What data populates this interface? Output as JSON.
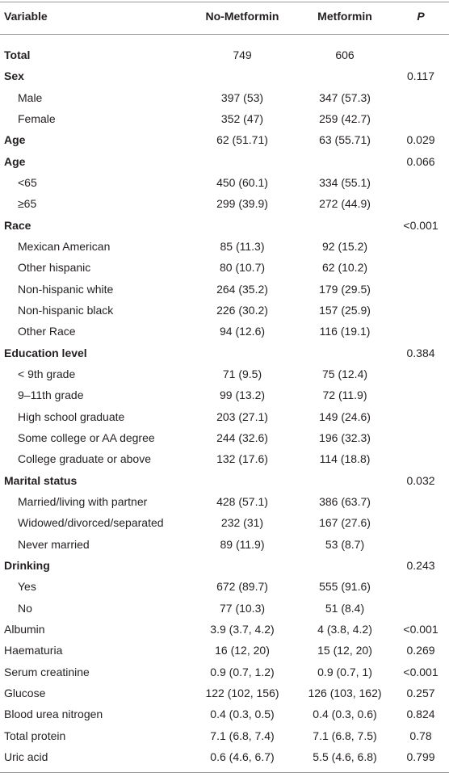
{
  "table": {
    "header": {
      "variable": "Variable",
      "no_metformin": "No-Metformin",
      "metformin": "Metformin",
      "p": "P"
    },
    "rows": [
      {
        "variable": "Total",
        "group": true,
        "no_metformin": "749",
        "metformin": "606"
      },
      {
        "variable": "Sex",
        "group": true,
        "p": "0.117"
      },
      {
        "variable": "Male",
        "sub": true,
        "no_metformin": "397 (53)",
        "metformin": "347 (57.3)"
      },
      {
        "variable": "Female",
        "sub": true,
        "no_metformin": "352 (47)",
        "metformin": "259 (42.7)"
      },
      {
        "variable": "Age",
        "group": true,
        "no_metformin": "62 (51.71)",
        "metformin": "63 (55.71)",
        "p": "0.029"
      },
      {
        "variable": "Age",
        "group": true,
        "p": "0.066"
      },
      {
        "variable": "<65",
        "sub": true,
        "no_metformin": "450 (60.1)",
        "metformin": "334 (55.1)"
      },
      {
        "variable": "≥65",
        "sub": true,
        "no_metformin": "299 (39.9)",
        "metformin": "272 (44.9)"
      },
      {
        "variable": "Race",
        "group": true,
        "p": "<0.001"
      },
      {
        "variable": "Mexican American",
        "sub": true,
        "no_metformin": "85 (11.3)",
        "metformin": "92 (15.2)"
      },
      {
        "variable": "Other hispanic",
        "sub": true,
        "no_metformin": "80 (10.7)",
        "metformin": "62 (10.2)"
      },
      {
        "variable": "Non-hispanic white",
        "sub": true,
        "no_metformin": "264 (35.2)",
        "metformin": "179 (29.5)"
      },
      {
        "variable": "Non-hispanic black",
        "sub": true,
        "no_metformin": "226 (30.2)",
        "metformin": "157 (25.9)"
      },
      {
        "variable": "Other Race",
        "sub": true,
        "no_metformin": "94 (12.6)",
        "metformin": "116 (19.1)"
      },
      {
        "variable": "Education level",
        "group": true,
        "p": "0.384"
      },
      {
        "variable": "< 9th grade",
        "sub": true,
        "no_metformin": "71 (9.5)",
        "metformin": "75 (12.4)"
      },
      {
        "variable": "9–11th grade",
        "sub": true,
        "no_metformin": "99 (13.2)",
        "metformin": "72 (11.9)"
      },
      {
        "variable": "High school graduate",
        "sub": true,
        "no_metformin": "203 (27.1)",
        "metformin": "149 (24.6)"
      },
      {
        "variable": "Some college or AA degree",
        "sub": true,
        "no_metformin": "244 (32.6)",
        "metformin": "196 (32.3)"
      },
      {
        "variable": "College graduate or above",
        "sub": true,
        "no_metformin": "132 (17.6)",
        "metformin": "114 (18.8)"
      },
      {
        "variable": "Marital status",
        "group": true,
        "p": "0.032"
      },
      {
        "variable": "Married/living with partner",
        "sub": true,
        "no_metformin": "428 (57.1)",
        "metformin": "386 (63.7)"
      },
      {
        "variable": "Widowed/divorced/separated",
        "sub": true,
        "no_metformin": "232 (31)",
        "metformin": "167 (27.6)"
      },
      {
        "variable": "Never married",
        "sub": true,
        "no_metformin": "89 (11.9)",
        "metformin": "53 (8.7)"
      },
      {
        "variable": "Drinking",
        "group": true,
        "p": "0.243"
      },
      {
        "variable": "Yes",
        "sub": true,
        "no_metformin": "672 (89.7)",
        "metformin": "555 (91.6)"
      },
      {
        "variable": "No",
        "sub": true,
        "no_metformin": "77 (10.3)",
        "metformin": "51 (8.4)"
      },
      {
        "variable": "Albumin",
        "no_metformin": "3.9 (3.7, 4.2)",
        "metformin": "4 (3.8, 4.2)",
        "p": "<0.001"
      },
      {
        "variable": "Haematuria",
        "no_metformin": "16 (12, 20)",
        "metformin": "15 (12, 20)",
        "p": "0.269"
      },
      {
        "variable": "Serum creatinine",
        "no_metformin": "0.9 (0.7, 1.2)",
        "metformin": "0.9 (0.7, 1)",
        "p": "<0.001"
      },
      {
        "variable": "Glucose",
        "no_metformin": "122 (102, 156)",
        "metformin": "126 (103, 162)",
        "p": "0.257"
      },
      {
        "variable": "Blood urea nitrogen",
        "no_metformin": "0.4 (0.3, 0.5)",
        "metformin": "0.4 (0.3, 0.6)",
        "p": "0.824"
      },
      {
        "variable": "Total protein",
        "no_metformin": "7.1 (6.8, 7.4)",
        "metformin": "7.1 (6.8, 7.5)",
        "p": "0.78"
      },
      {
        "variable": "Uric acid",
        "no_metformin": "0.6 (4.6, 6.7)",
        "metformin": "5.5 (4.6, 6.8)",
        "p": "0.799"
      }
    ]
  }
}
